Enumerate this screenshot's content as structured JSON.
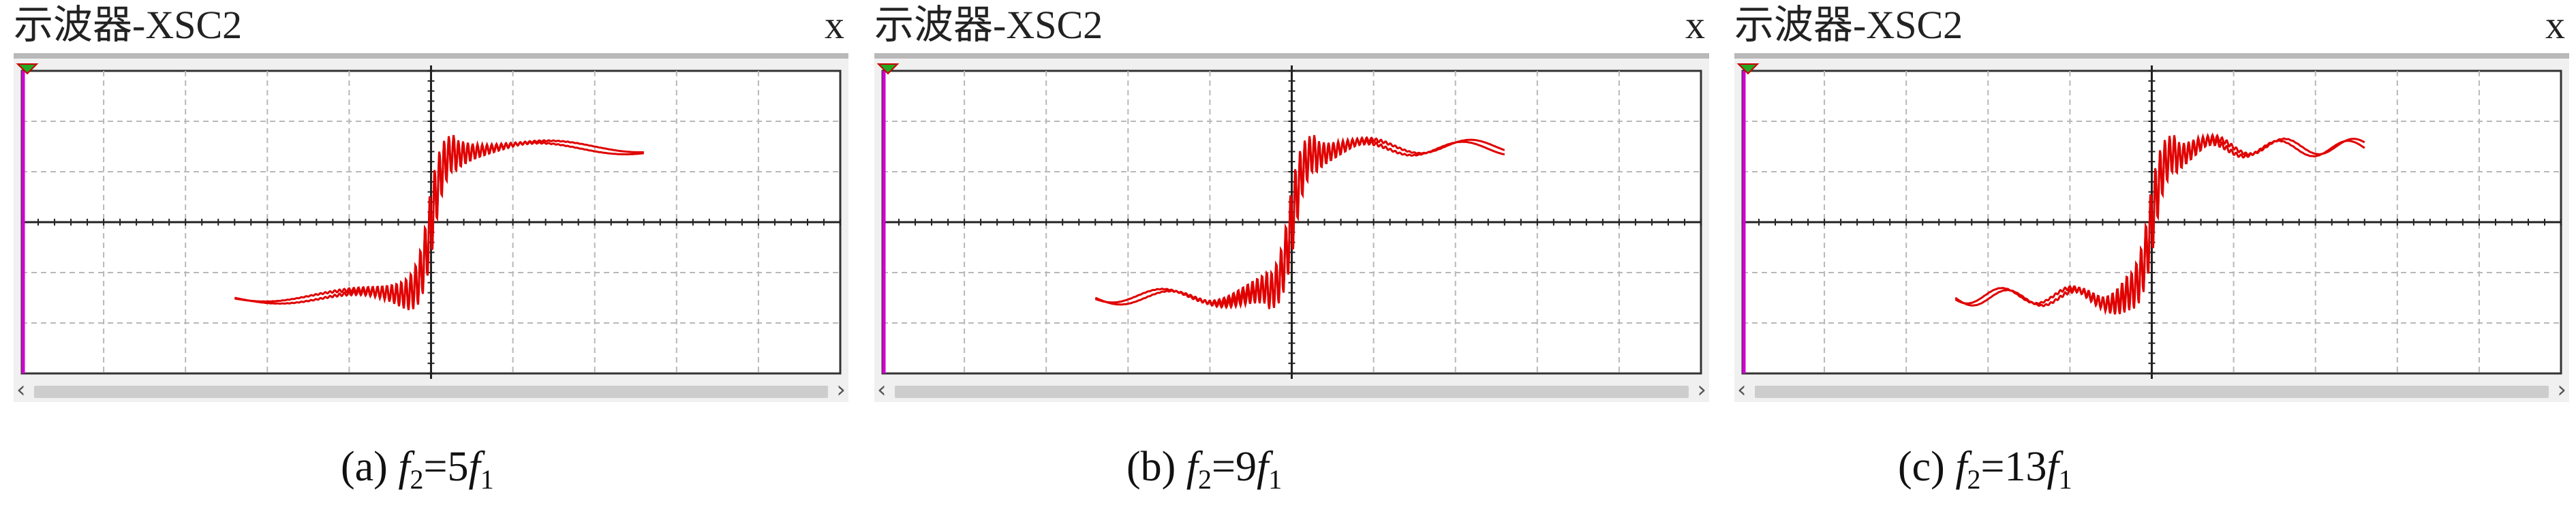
{
  "panels": [
    {
      "title": "示波器-XSC2",
      "close_label": "x",
      "caption": {
        "prefix": "(a) ",
        "ratio": "5"
      },
      "wave": {
        "harmonic": 5
      }
    },
    {
      "title": "示波器-XSC2",
      "close_label": "x",
      "caption": {
        "prefix": "(b) ",
        "ratio": "9"
      },
      "wave": {
        "harmonic": 9
      }
    },
    {
      "title": "示波器-XSC2",
      "close_label": "x",
      "caption": {
        "prefix": "(c) ",
        "ratio": "13"
      },
      "wave": {
        "harmonic": 13
      }
    }
  ],
  "scrollbar": {
    "left_arrow": "‹",
    "right_arrow": "›"
  },
  "colors": {
    "trace": "#e00000",
    "grid": "#b8b8b8",
    "axis": "#222222",
    "marker_left": "#d000d0",
    "trigger_marker": "#22aa22",
    "background": "#f0f0f0"
  }
}
